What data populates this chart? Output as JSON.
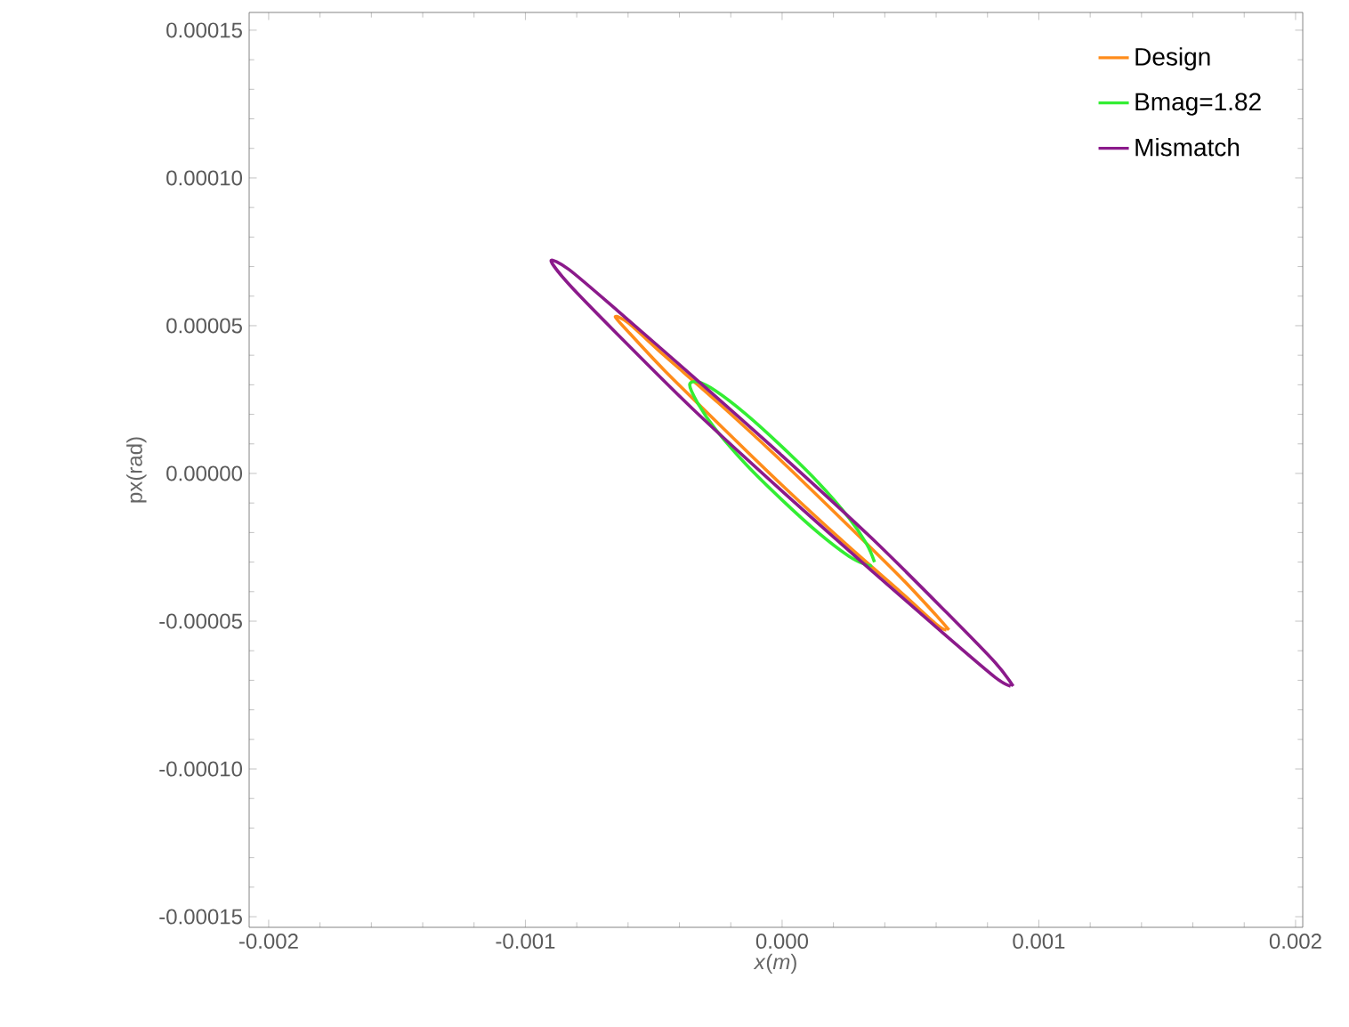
{
  "chart_data": {
    "type": "line",
    "xlabel": "*x*(*m*)",
    "ylabel": "px(rad)",
    "legend": "top right",
    "xlim": [
      -0.002076,
      0.002028
    ],
    "ylim": [
      -0.0001536,
      0.000156
    ],
    "xticks": [
      {
        "value": -0.002,
        "label": "-0.002"
      },
      {
        "value": -0.001,
        "label": "-0.001"
      },
      {
        "value": 0,
        "label": "0.000"
      },
      {
        "value": 0.001,
        "label": "0.001"
      },
      {
        "value": 0.002,
        "label": "0.002"
      }
    ],
    "yticks": [
      {
        "value": -0.00015,
        "label": "-0.00015"
      },
      {
        "value": -0.0001,
        "label": "-0.00010"
      },
      {
        "value": -5e-05,
        "label": "-0.00005"
      },
      {
        "value": 0,
        "label": "0.00000"
      },
      {
        "value": 5e-05,
        "label": "0.00005"
      },
      {
        "value": 0.0001,
        "label": "0.00010"
      },
      {
        "value": 0.00015,
        "label": "0.00015"
      }
    ],
    "series": [
      {
        "name": "Design",
        "color": "#ff8c1a",
        "x": [
          0.00065,
          0.0006,
          0.00046,
          0.00025,
          0,
          -0.00025,
          -0.00046,
          -0.0006,
          -0.00065,
          -0.0006,
          -0.00046,
          -0.00025,
          0,
          0.00025,
          0.00046,
          0.0006,
          0.00064
        ],
        "values": [
          -5.3e-05,
          -4.8e-05,
          -3.5e-05,
          -1.7e-05,
          4e-06,
          2.4e-05,
          4e-05,
          5.1e-05,
          5.3e-05,
          4.8e-05,
          3.5e-05,
          1.7e-05,
          -4e-06,
          -2.4e-05,
          -4e-05,
          -5.1e-05,
          -5.3e-05
        ]
      },
      {
        "name": "Bmag=1.82",
        "color": "#33ee33",
        "x": [
          0.00036,
          0.00033,
          0.00026,
          0.00014,
          0,
          -0.00014,
          -0.00026,
          -0.00033,
          -0.00036,
          -0.00033,
          -0.00026,
          -0.00014,
          0,
          0.00014,
          0.00026,
          0.00033,
          0.00035
        ],
        "values": [
          -3e-05,
          -2.4e-05,
          -1.5e-05,
          -3e-06,
          9e-06,
          2e-05,
          2.8e-05,
          3.1e-05,
          3e-05,
          2.4e-05,
          1.5e-05,
          3e-06,
          -9e-06,
          -2e-05,
          -2.8e-05,
          -3.1e-05,
          -3.1e-05
        ]
      },
      {
        "name": "Mismatch",
        "color": "#8b1a8b",
        "x": [
          0.0009,
          0.00083,
          0.00064,
          0.00035,
          0,
          -0.00035,
          -0.00064,
          -0.00083,
          -0.0009,
          -0.00083,
          -0.00064,
          -0.00035,
          0,
          0.00035,
          0.00064,
          0.00083,
          0.00089
        ],
        "values": [
          -7.2e-05,
          -6.4e-05,
          -4.7e-05,
          -2.2e-05,
          6e-06,
          3.3e-05,
          5.5e-05,
          6.9e-05,
          7.2e-05,
          6.4e-05,
          4.7e-05,
          2.2e-05,
          -6e-06,
          -3.3e-05,
          -5.5e-05,
          -6.9e-05,
          -7.2e-05
        ]
      }
    ]
  }
}
